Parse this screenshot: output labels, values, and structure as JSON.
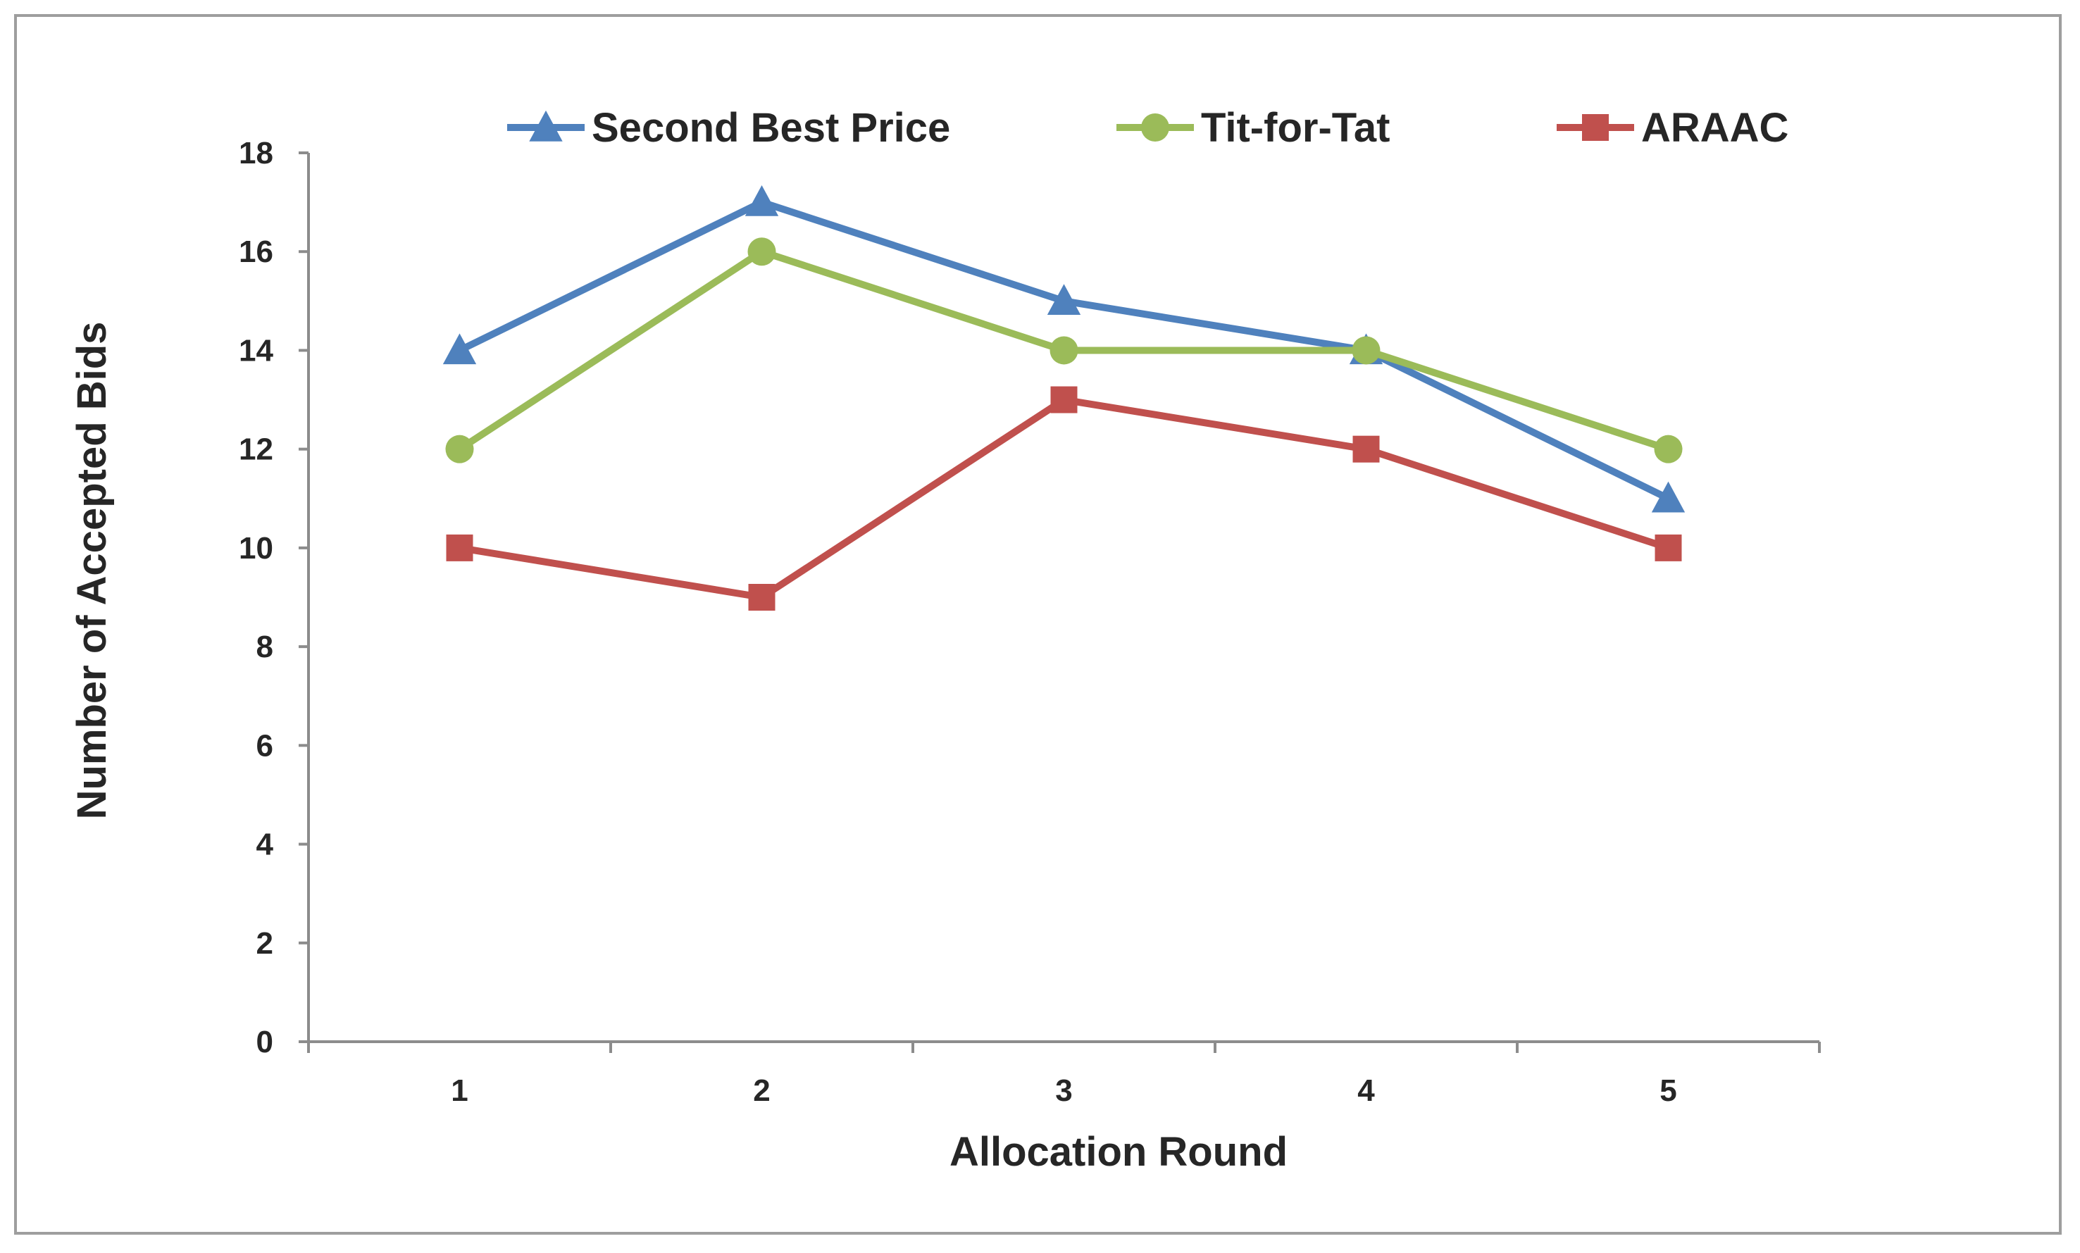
{
  "chart_data": {
    "type": "line",
    "xlabel": "Allocation Round",
    "ylabel": "Number of Accepted Bids",
    "categories": [
      "1",
      "2",
      "3",
      "4",
      "5"
    ],
    "ylim": [
      0,
      18
    ],
    "yticks": [
      "0",
      "2",
      "4",
      "6",
      "8",
      "10",
      "12",
      "14",
      "16",
      "18"
    ],
    "grid": false,
    "legend_position": "top",
    "series": [
      {
        "name": "Second Best Price",
        "values": [
          14,
          17,
          15,
          14,
          11
        ],
        "color": "#4f81bd",
        "marker": "triangle"
      },
      {
        "name": "Tit-for-Tat",
        "values": [
          12,
          16,
          14,
          14,
          12
        ],
        "color": "#9bbb59",
        "marker": "circle"
      },
      {
        "name": "ARAAC",
        "values": [
          10,
          9,
          13,
          12,
          10
        ],
        "color": "#c0504d",
        "marker": "square"
      }
    ]
  }
}
